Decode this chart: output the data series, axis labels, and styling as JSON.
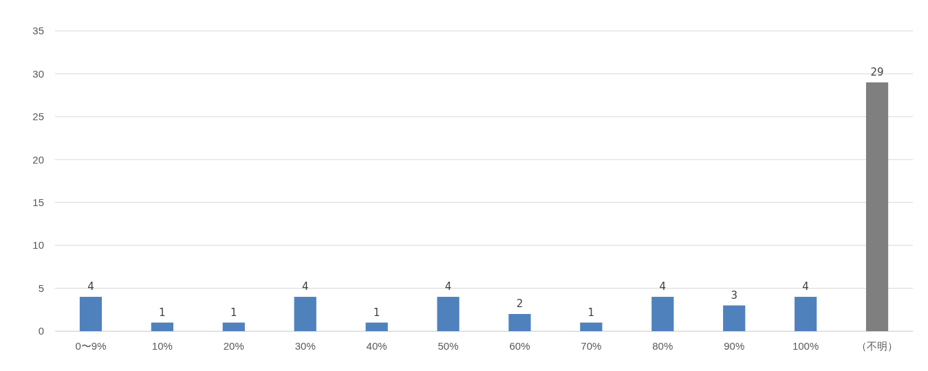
{
  "chart_data": {
    "type": "bar",
    "categories": [
      "0〜9%",
      "10%",
      "20%",
      "30%",
      "40%",
      "50%",
      "60%",
      "70%",
      "80%",
      "90%",
      "100%",
      "（不明）"
    ],
    "values": [
      4,
      1,
      1,
      4,
      1,
      4,
      2,
      1,
      4,
      3,
      4,
      29
    ],
    "colors": [
      "#4f81bd",
      "#4f81bd",
      "#4f81bd",
      "#4f81bd",
      "#4f81bd",
      "#4f81bd",
      "#4f81bd",
      "#4f81bd",
      "#4f81bd",
      "#4f81bd",
      "#4f81bd",
      "#7f7f7f"
    ],
    "ylim": [
      0,
      35
    ],
    "yticks": [
      0,
      5,
      10,
      15,
      20,
      25,
      30,
      35
    ],
    "grid": "y",
    "data_labels": true
  }
}
